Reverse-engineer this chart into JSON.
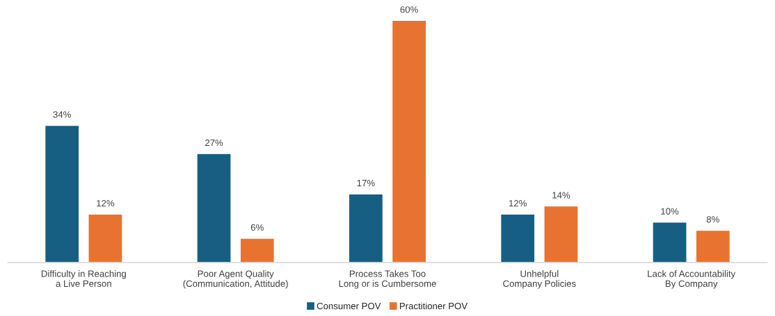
{
  "chart_data": {
    "type": "bar",
    "categories": [
      "Difficulty in Reaching\na Live Person",
      "Poor Agent Quality\n(Communication, Attitude)",
      "Process Takes Too\nLong or is Cumbersome",
      "Unhelpful\nCompany Policies",
      "Lack of Accountability\nBy Company"
    ],
    "series": [
      {
        "name": "Consumer POV",
        "color": "#175e83",
        "values": [
          34,
          27,
          17,
          12,
          10
        ],
        "value_labels": [
          "34%",
          "27%",
          "17%",
          "12%",
          "10%"
        ]
      },
      {
        "name": "Practitioner POV",
        "color": "#e87331",
        "values": [
          12,
          6,
          60,
          14,
          8
        ],
        "value_labels": [
          "12%",
          "6%",
          "60%",
          "14%",
          "8%"
        ]
      }
    ],
    "legend": "bottom",
    "grid": false
  }
}
